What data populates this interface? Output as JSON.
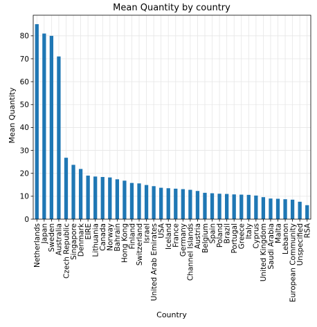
{
  "chart_data": {
    "type": "bar",
    "title": "Mean Quantity by country",
    "xlabel": "Country",
    "ylabel": "Mean Quantity",
    "ylim": [
      0,
      89
    ],
    "yticks": [
      0,
      10,
      20,
      30,
      40,
      50,
      60,
      70,
      80
    ],
    "grid": true,
    "bar_color": "#1f77b4",
    "categories": [
      "Netherlands",
      "Japan",
      "Sweden",
      "Australia",
      "Czech Republic",
      "Singapore",
      "Denmark",
      "EIRE",
      "Lithuania",
      "Canada",
      "Norway",
      "Bahrain",
      "Hong Kong",
      "Finland",
      "Switzerland",
      "Israel",
      "United Arab Emirates",
      "USA",
      "Iceland",
      "France",
      "Germany",
      "Channel Islands",
      "Austria",
      "Belgium",
      "Spain",
      "Poland",
      "Brazil",
      "Portugal",
      "Greece",
      "Italy",
      "Cyprus",
      "United Kingdom",
      "Saudi Arabia",
      "Malta",
      "Lebanon",
      "European Community",
      "Unspecified",
      "RSA"
    ],
    "values": [
      85.1,
      81.0,
      80.0,
      71.0,
      26.8,
      23.7,
      21.9,
      19.0,
      18.6,
      18.4,
      18.2,
      17.4,
      16.8,
      15.8,
      15.6,
      14.9,
      14.4,
      13.7,
      13.5,
      13.3,
      13.1,
      12.8,
      12.3,
      11.5,
      11.3,
      11.1,
      11.0,
      10.8,
      10.7,
      10.6,
      10.3,
      9.6,
      9.0,
      8.9,
      8.7,
      8.5,
      7.6,
      6.1
    ]
  }
}
